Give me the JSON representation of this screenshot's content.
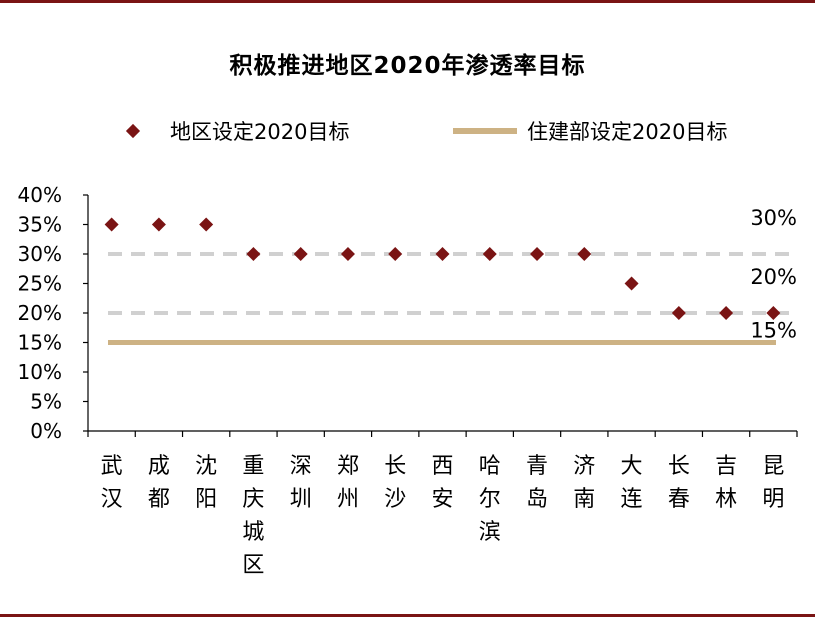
{
  "chart_data": {
    "type": "scatter",
    "title": "积极推进地区2020年渗透率目标",
    "categories": [
      "武汉",
      "成都",
      "沈阳",
      "重庆城区",
      "深圳",
      "郑州",
      "长沙",
      "西安",
      "哈尔滨",
      "青岛",
      "济南",
      "大连",
      "长春",
      "吉林",
      "昆明"
    ],
    "series": [
      {
        "name": "地区设定2020目标",
        "marker": "diamond",
        "color": "#7a1414",
        "values": [
          35,
          35,
          35,
          30,
          30,
          30,
          30,
          30,
          30,
          30,
          30,
          25,
          20,
          20,
          20
        ]
      }
    ],
    "reference_lines": [
      {
        "value": 30,
        "label": "30%",
        "style": "dashed",
        "color": "#d0d0d0"
      },
      {
        "value": 20,
        "label": "20%",
        "style": "dashed",
        "color": "#d0d0d0"
      },
      {
        "value": 15,
        "label": "15%",
        "name": "住建部设定2020目标",
        "style": "solid",
        "color": "#cdb284"
      }
    ],
    "ylim": [
      0,
      40
    ],
    "yticks": [
      "0%",
      "5%",
      "10%",
      "15%",
      "20%",
      "25%",
      "30%",
      "35%",
      "40%"
    ],
    "grid": false,
    "legend_position": "top"
  },
  "legend": {
    "series_label": "地区设定2020目标",
    "line_label": "住建部设定2020目标"
  }
}
